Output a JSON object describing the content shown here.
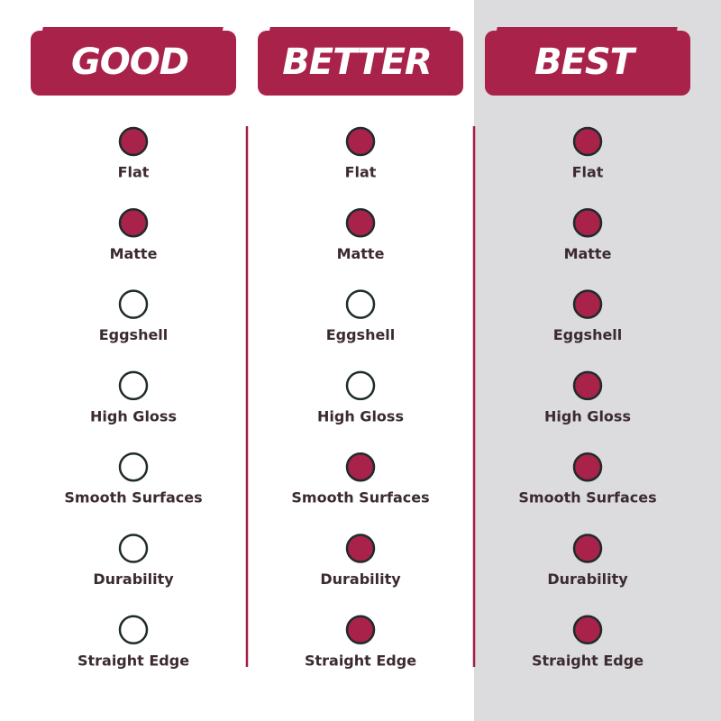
{
  "columns": [
    {
      "title": "GOOD",
      "features": [
        {
          "label": "Flat",
          "included": true
        },
        {
          "label": "Matte",
          "included": true
        },
        {
          "label": "Eggshell",
          "included": false
        },
        {
          "label": "High Gloss",
          "included": false
        },
        {
          "label": "Smooth Surfaces",
          "included": false
        },
        {
          "label": "Durability",
          "included": false
        },
        {
          "label": "Straight Edge",
          "included": false
        }
      ]
    },
    {
      "title": "BETTER",
      "features": [
        {
          "label": "Flat",
          "included": true
        },
        {
          "label": "Matte",
          "included": true
        },
        {
          "label": "Eggshell",
          "included": false
        },
        {
          "label": "High Gloss",
          "included": false
        },
        {
          "label": "Smooth Surfaces",
          "included": true
        },
        {
          "label": "Durability",
          "included": true
        },
        {
          "label": "Straight Edge",
          "included": true
        }
      ]
    },
    {
      "title": "BEST",
      "features": [
        {
          "label": "Flat",
          "included": true
        },
        {
          "label": "Matte",
          "included": true
        },
        {
          "label": "Eggshell",
          "included": true
        },
        {
          "label": "High Gloss",
          "included": true
        },
        {
          "label": "Smooth Surfaces",
          "included": true
        },
        {
          "label": "Durability",
          "included": true
        },
        {
          "label": "Straight Edge",
          "included": true
        }
      ]
    }
  ]
}
